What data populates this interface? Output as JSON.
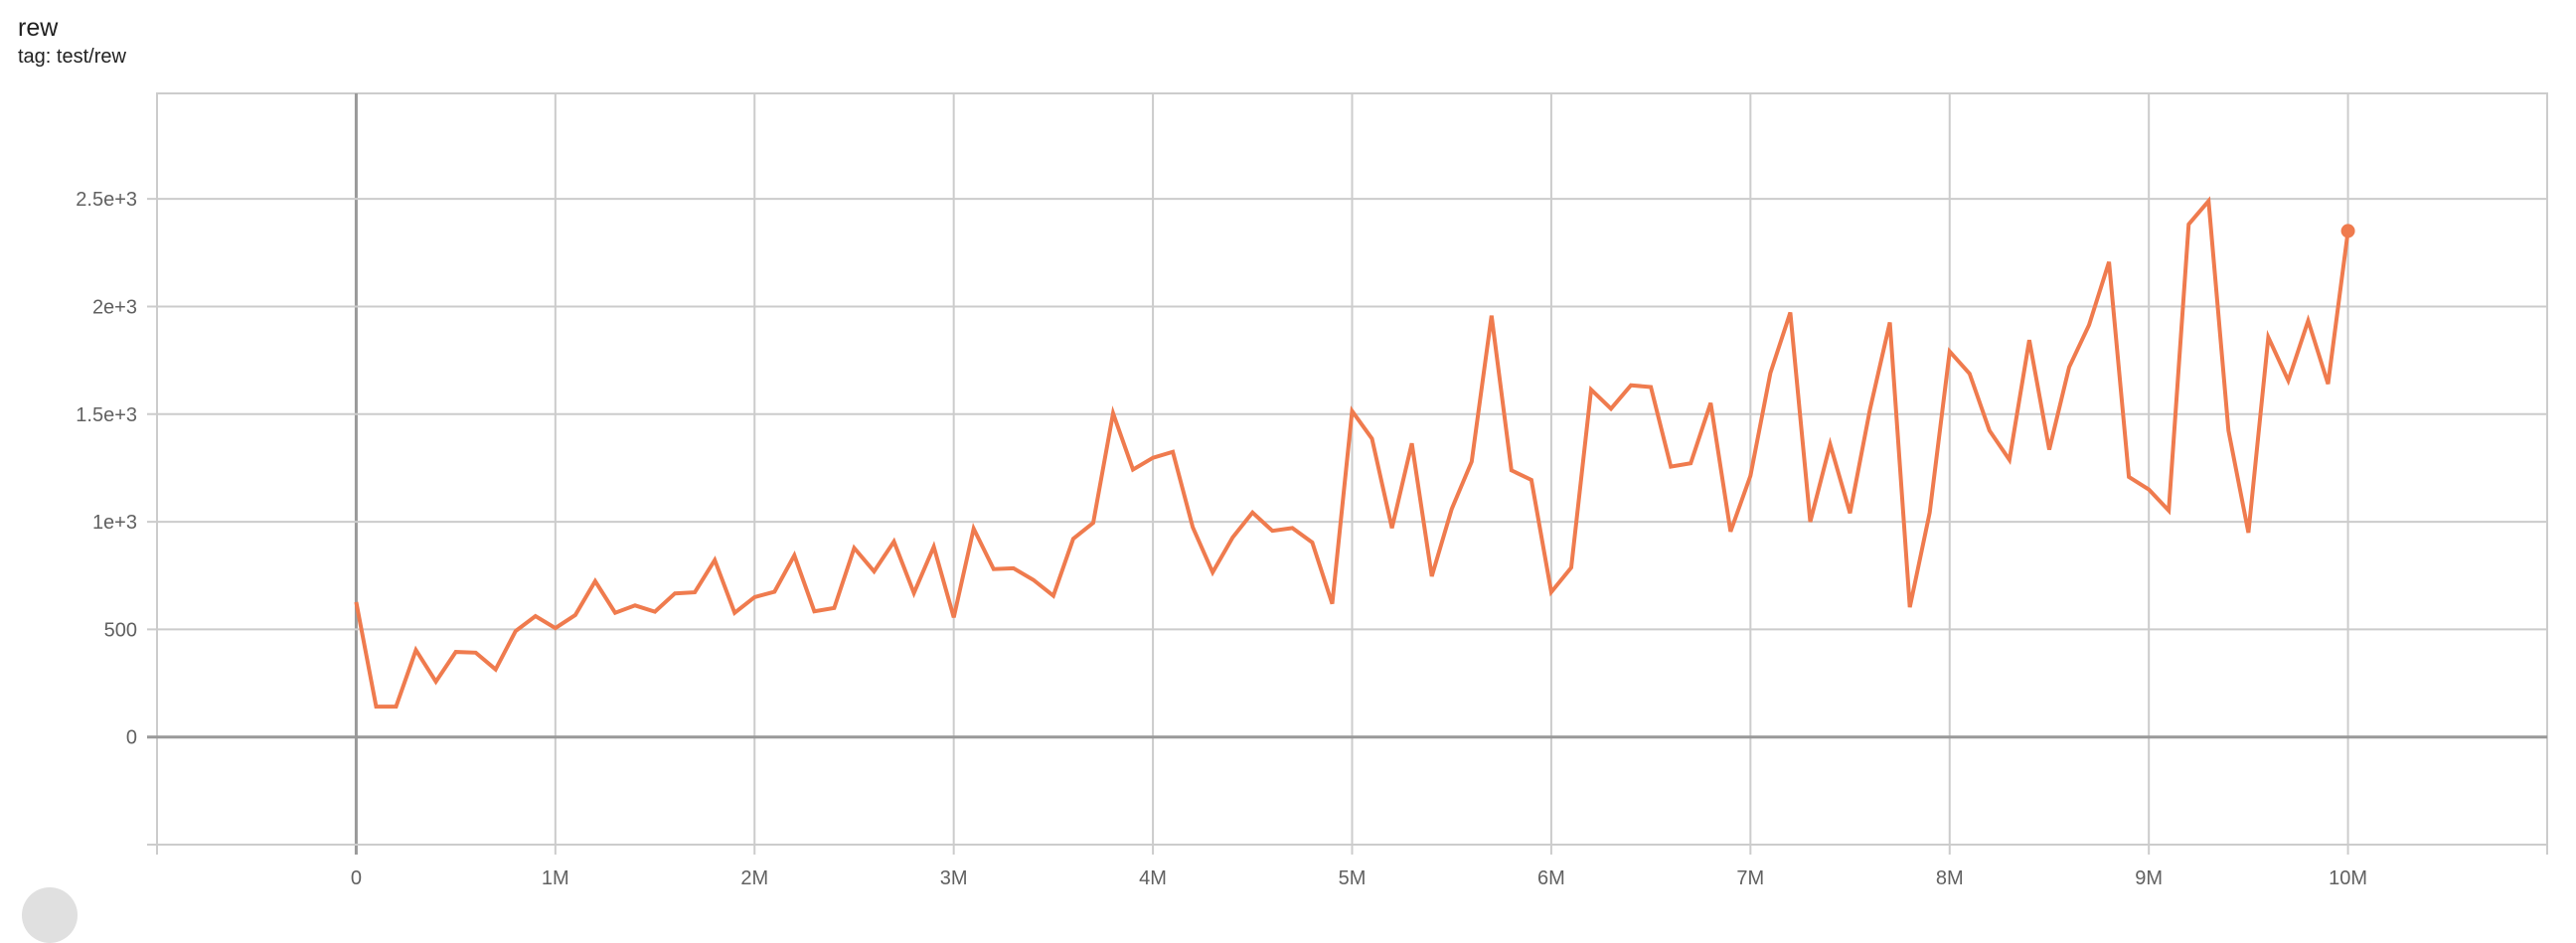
{
  "header": {
    "title": "rew",
    "tag": "tag: test/rew"
  },
  "colors": {
    "series": "#ef7b4e",
    "grid": "#cccccc",
    "zero_axis": "#999999"
  },
  "chart_data": {
    "type": "line",
    "title": "rew",
    "subtitle": "tag: test/rew",
    "xlabel": "",
    "ylabel": "",
    "xlim": [
      -1000000,
      11000000
    ],
    "ylim": [
      -500,
      2990
    ],
    "grid": true,
    "x_ticks": [
      0,
      1000000,
      2000000,
      3000000,
      4000000,
      5000000,
      6000000,
      7000000,
      8000000,
      9000000,
      10000000
    ],
    "x_tick_labels": [
      "0",
      "1M",
      "2M",
      "3M",
      "4M",
      "5M",
      "6M",
      "7M",
      "8M",
      "9M",
      "10M"
    ],
    "y_ticks": [
      -500,
      0,
      500,
      1000,
      1500,
      2000,
      2500
    ],
    "y_tick_labels": [
      "",
      "0",
      "500",
      "1e+3",
      "1.5e+3",
      "2e+3",
      "2.5e+3"
    ],
    "series": [
      {
        "x": [
          0,
          100000,
          200000,
          300000,
          400000,
          500000,
          600000,
          700000,
          800000,
          900000,
          1000000,
          1100000,
          1200000,
          1300000,
          1400000,
          1500000,
          1600000,
          1700000,
          1800000,
          1900000,
          2000000,
          2100000,
          2200000,
          2300000,
          2400000,
          2500000,
          2600000,
          2700000,
          2800000,
          2900000,
          3000000,
          3100000,
          3200000,
          3300000,
          3400000,
          3500000,
          3600000,
          3700000,
          3800000,
          3900000,
          4000000,
          4100000,
          4200000,
          4300000,
          4400000,
          4500000,
          4600000,
          4700000,
          4800000,
          4900000,
          5000000,
          5100000,
          5200000,
          5300000,
          5400000,
          5500000,
          5600000,
          5700000,
          5800000,
          5900000,
          6000000,
          6100000,
          6200000,
          6300000,
          6400000,
          6500000,
          6600000,
          6700000,
          6800000,
          6900000,
          7000000,
          7100000,
          7200000,
          7300000,
          7400000,
          7500000,
          7600000,
          7700000,
          7800000,
          7900000,
          8000000,
          8100000,
          8200000,
          8300000,
          8400000,
          8500000,
          8600000,
          8700000,
          8800000,
          8900000,
          9000000,
          9100000,
          9200000,
          9300000,
          9400000,
          9500000,
          9600000,
          9700000,
          9800000,
          9900000,
          10000000
        ],
        "y": [
          627,
          141,
          141,
          404,
          257,
          395,
          392,
          314,
          492,
          562,
          506,
          567,
          724,
          577,
          611,
          582,
          667,
          672,
          822,
          577,
          650,
          675,
          844,
          584,
          599,
          878,
          769,
          908,
          669,
          884,
          556,
          968,
          780,
          784,
          730,
          656,
          921,
          995,
          1504,
          1242,
          1297,
          1325,
          974,
          765,
          927,
          1043,
          958,
          971,
          904,
          619,
          1514,
          1386,
          971,
          1364,
          747,
          1059,
          1279,
          1958,
          1239,
          1194,
          673,
          787,
          1614,
          1525,
          1634,
          1626,
          1256,
          1272,
          1552,
          954,
          1213,
          1691,
          1972,
          1000,
          1360,
          1040,
          1522,
          1926,
          603,
          1043,
          1791,
          1688,
          1424,
          1288,
          1844,
          1335,
          1718,
          1914,
          2207,
          1208,
          1150,
          1052,
          2382,
          2490,
          1424,
          949,
          1857,
          1656,
          1934,
          1640,
          2351
        ]
      }
    ]
  }
}
